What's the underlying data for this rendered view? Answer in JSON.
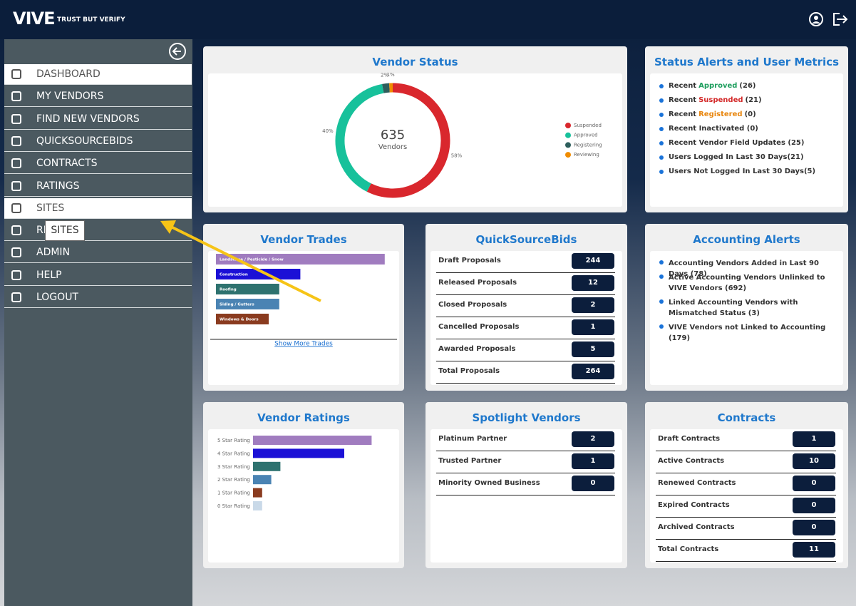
{
  "header": {
    "logo": "VIVE",
    "tagline": "TRUST BUT VERIFY"
  },
  "sidebar": {
    "menu": [
      "DASHBOARD",
      "MY VENDORS",
      "FIND NEW VENDORS",
      "QUICKSOURCEBIDS",
      "CONTRACTS",
      "RATINGS",
      "SITES",
      "REPORTS",
      "ADMIN",
      "HELP",
      "LOGOUT"
    ],
    "tooltip": "SITES"
  },
  "vendor_status": {
    "type": "pie",
    "title": "Vendor Status",
    "total": 635,
    "total_label": "Vendors",
    "categories": [
      "Suspended",
      "Approved",
      "Registering",
      "Reviewing"
    ],
    "values": [
      58,
      40,
      2,
      1
    ],
    "value_labels": [
      "58%",
      "40%",
      "2%",
      "1%"
    ],
    "colors": [
      "#d9272d",
      "#17c19b",
      "#2d5e5c",
      "#f08c00"
    ]
  },
  "status_alerts": {
    "title": "Status Alerts and User Metrics",
    "items": [
      {
        "lead": "Recent",
        "word": "Approved",
        "color": "#1e9e5e",
        "count": "(26)"
      },
      {
        "lead": "Recent",
        "word": "Suspended",
        "color": "#d42a2a",
        "count": "(21)"
      },
      {
        "lead": "Recent",
        "word": "Registered",
        "color": "#e8850c",
        "count": "(0)"
      },
      {
        "text": "Recent Inactivated (0)"
      },
      {
        "text": "Recent Vendor Field Updates (25)"
      },
      {
        "text": "Users Logged In Last 30 Days(21)"
      },
      {
        "text": "Users Not Logged In Last 30 Days(5)"
      }
    ]
  },
  "vendor_trades": {
    "type": "bar",
    "title": "Vendor Trades",
    "categories": [
      "Landscape / Pesticide / Snow",
      "Construction",
      "Roofing",
      "Siding / Gutters",
      "Windows & Doors"
    ],
    "values": [
      32,
      16,
      12,
      12,
      10
    ],
    "colors": [
      "#a07cbf",
      "#1b10d6",
      "#2e726f",
      "#4a83b3",
      "#8a3b1f"
    ],
    "link": "Show More Trades"
  },
  "quicksourcebids": {
    "title": "QuickSourceBids",
    "rows": [
      {
        "label": "Draft Proposals",
        "value": 244
      },
      {
        "label": "Released Proposals",
        "value": 12
      },
      {
        "label": "Closed Proposals",
        "value": 2
      },
      {
        "label": "Cancelled Proposals",
        "value": 1
      },
      {
        "label": "Awarded Proposals",
        "value": 5
      },
      {
        "label": "Total Proposals",
        "value": 264
      }
    ]
  },
  "accounting_alerts": {
    "title": "Accounting Alerts",
    "items": [
      "Accounting Vendors Added in Last 90 Days (78)",
      "Active Accounting Vendors Unlinked to VIVE Vendors (692)",
      "Linked Accounting Vendors with Mismatched Status (3)",
      "VIVE Vendors not Linked to Accounting (179)"
    ]
  },
  "vendor_ratings": {
    "type": "bar",
    "title": "Vendor Ratings",
    "categories": [
      "5 Star Rating",
      "4 Star Rating",
      "3 Star Rating",
      "2 Star Rating",
      "1 Star Rating",
      "0 Star Rating"
    ],
    "values": [
      13,
      10,
      3,
      2,
      1,
      1
    ],
    "colors": [
      "#a07cbf",
      "#1b10d6",
      "#2e726f",
      "#4a83b3",
      "#8a3b1f",
      "#c9d9e8"
    ]
  },
  "spotlight_vendors": {
    "title": "Spotlight Vendors",
    "rows": [
      {
        "label": "Platinum Partner",
        "value": 2
      },
      {
        "label": "Trusted Partner",
        "value": 1
      },
      {
        "label": "Minority Owned Business",
        "value": 0
      }
    ]
  },
  "contracts": {
    "title": "Contracts",
    "rows": [
      {
        "label": "Draft Contracts",
        "value": 1
      },
      {
        "label": "Active Contracts",
        "value": 10
      },
      {
        "label": "Renewed Contracts",
        "value": 0
      },
      {
        "label": "Expired Contracts",
        "value": 0
      },
      {
        "label": "Archived Contracts",
        "value": 0
      },
      {
        "label": "Total Contracts",
        "value": 11
      }
    ]
  }
}
